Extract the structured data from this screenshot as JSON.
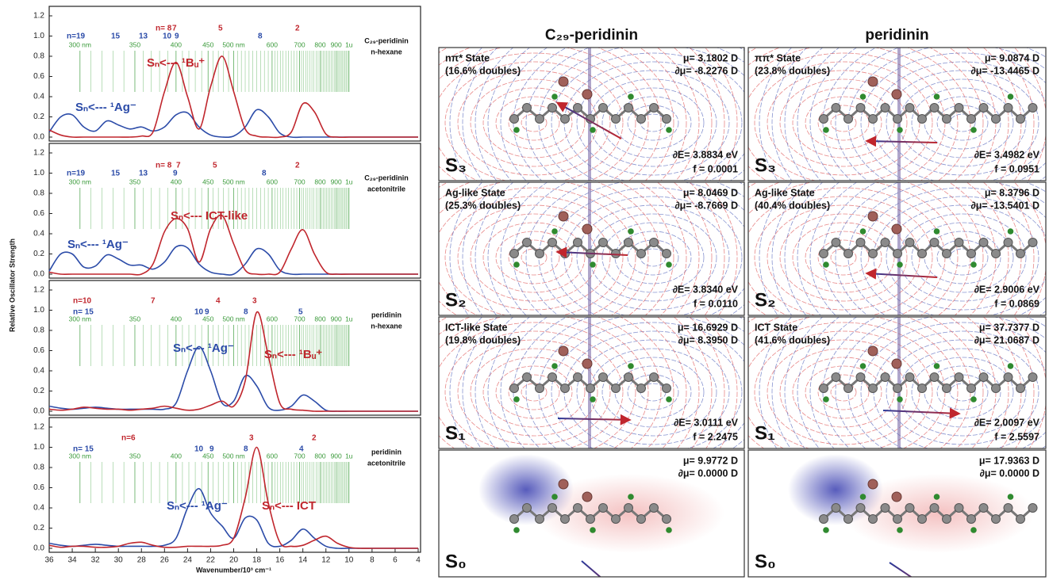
{
  "chart_data": [
    {
      "type": "line",
      "sample": "C₂₉-peridinin",
      "solvent": "n-hexane",
      "x": [
        36,
        35,
        34,
        33,
        32,
        31,
        30,
        29,
        28,
        27,
        26,
        25,
        24,
        23,
        22,
        21,
        20,
        19,
        18,
        17,
        16,
        15,
        14,
        13,
        12,
        11,
        10,
        9,
        8,
        7,
        6,
        5,
        4
      ],
      "xlim": [
        36,
        4
      ],
      "ylim": [
        0,
        1.2
      ],
      "yticks": [
        {
          "value": 0,
          "label": "0.0"
        },
        {
          "value": 0.2,
          "label": "0.2"
        },
        {
          "value": 0.4,
          "label": "0.4"
        },
        {
          "value": 0.6,
          "label": "0.6"
        },
        {
          "value": 0.8,
          "label": "0.8"
        },
        {
          "value": 1,
          "label": "1.0"
        },
        {
          "value": 1.2,
          "label": "1.2"
        }
      ],
      "x2ticks": [
        {
          "value": 33.33,
          "label": "300 nm"
        },
        {
          "value": 28.57,
          "label": "350"
        },
        {
          "value": 25,
          "label": "400"
        },
        {
          "value": 22.22,
          "label": "450"
        },
        {
          "value": 20,
          "label": "500 nm"
        },
        {
          "value": 16.67,
          "label": "600"
        },
        {
          "value": 14.29,
          "label": "700"
        },
        {
          "value": 12.5,
          "label": "800"
        },
        {
          "value": 11.11,
          "label": "900"
        },
        {
          "value": 10,
          "label": "1u"
        }
      ],
      "series": [
        {
          "color": "#2b4ba8",
          "values": [
            0.05,
            0.2,
            0.22,
            0.1,
            0.06,
            0.16,
            0.12,
            0.08,
            0.1,
            0.06,
            0.1,
            0.22,
            0.24,
            0.1,
            0.02,
            0,
            0.01,
            0.1,
            0.27,
            0.2,
            0.04,
            0,
            0,
            0,
            0,
            0,
            0,
            0,
            0,
            0,
            0,
            0,
            0
          ]
        },
        {
          "color": "#c0262d",
          "values": [
            0.07,
            0.02,
            0,
            0,
            0,
            0,
            0,
            0,
            0.01,
            0.05,
            0.45,
            0.74,
            0.4,
            0.08,
            0.5,
            0.8,
            0.45,
            0.08,
            0.01,
            0,
            0,
            0.05,
            0.33,
            0.25,
            0.03,
            0,
            0,
            0,
            0,
            0,
            0,
            0,
            0
          ]
        }
      ],
      "annotations": [
        {
          "text": "n=19",
          "color": "#2b4ba8"
        },
        {
          "text": "15",
          "color": "#2b4ba8"
        },
        {
          "text": "13",
          "color": "#2b4ba8"
        },
        {
          "text": "10",
          "color": "#2b4ba8"
        },
        {
          "text": "9",
          "color": "#2b4ba8"
        },
        {
          "text": "8",
          "color": "#2b4ba8"
        },
        {
          "text": "n= 8",
          "color": "#c0262d"
        },
        {
          "text": "7",
          "color": "#c0262d"
        },
        {
          "text": "5",
          "color": "#c0262d"
        },
        {
          "text": "2",
          "color": "#c0262d"
        },
        {
          "text": "Sₙ<--- ¹Ag⁻",
          "color": "#2b4ba8"
        },
        {
          "text": "Sₙ<--- ¹Bᵤ⁺",
          "color": "#c0262d"
        }
      ]
    },
    {
      "type": "line",
      "sample": "C₂₉-peridinin",
      "solvent": "acetonitrile",
      "x": [
        36,
        35,
        34,
        33,
        32,
        31,
        30,
        29,
        28,
        27,
        26,
        25,
        24,
        23,
        22,
        21,
        20,
        19,
        18,
        17,
        16,
        15,
        14,
        13,
        12,
        11,
        10,
        9,
        8,
        7,
        6,
        5,
        4
      ],
      "xlim": [
        36,
        4
      ],
      "ylim": [
        0,
        1.2
      ],
      "yticks": [
        {
          "value": 0,
          "label": "0.0"
        },
        {
          "value": 0.2,
          "label": "0.2"
        },
        {
          "value": 0.4,
          "label": "0.4"
        },
        {
          "value": 0.6,
          "label": "0.6"
        },
        {
          "value": 0.8,
          "label": "0.8"
        },
        {
          "value": 1,
          "label": "1.0"
        },
        {
          "value": 1.2,
          "label": "1.2"
        }
      ],
      "x2ticks": [
        {
          "value": 33.33,
          "label": "300 nm"
        },
        {
          "value": 28.57,
          "label": "350"
        },
        {
          "value": 25,
          "label": "400"
        },
        {
          "value": 22.22,
          "label": "450"
        },
        {
          "value": 20,
          "label": "500 nm"
        },
        {
          "value": 16.67,
          "label": "600"
        },
        {
          "value": 14.29,
          "label": "700"
        },
        {
          "value": 12.5,
          "label": "800"
        },
        {
          "value": 11.11,
          "label": "900"
        },
        {
          "value": 10,
          "label": "1u"
        }
      ],
      "series": [
        {
          "color": "#2b4ba8",
          "values": [
            0.03,
            0.2,
            0.2,
            0.07,
            0.08,
            0.19,
            0.15,
            0.09,
            0.09,
            0.05,
            0.12,
            0.27,
            0.26,
            0.1,
            0.02,
            0,
            0,
            0.1,
            0.25,
            0.2,
            0.04,
            0,
            0,
            0,
            0,
            0,
            0,
            0,
            0,
            0,
            0,
            0,
            0
          ]
        },
        {
          "color": "#c0262d",
          "values": [
            0.02,
            0,
            0,
            0,
            0,
            0,
            0,
            0,
            0,
            0.1,
            0.42,
            0.55,
            0.45,
            0.12,
            0.45,
            0.58,
            0.3,
            0.04,
            0,
            0,
            0.02,
            0.25,
            0.44,
            0.2,
            0.02,
            0,
            0,
            0,
            0,
            0,
            0,
            0,
            0
          ]
        }
      ],
      "annotations": [
        {
          "text": "n=19",
          "color": "#2b4ba8"
        },
        {
          "text": "15",
          "color": "#2b4ba8"
        },
        {
          "text": "13",
          "color": "#2b4ba8"
        },
        {
          "text": "9",
          "color": "#2b4ba8"
        },
        {
          "text": "8",
          "color": "#2b4ba8"
        },
        {
          "text": "n= 8",
          "color": "#c0262d"
        },
        {
          "text": "7",
          "color": "#c0262d"
        },
        {
          "text": "5",
          "color": "#c0262d"
        },
        {
          "text": "2",
          "color": "#c0262d"
        },
        {
          "text": "Sₙ<--- ICT-like",
          "color": "#c0262d"
        },
        {
          "text": "Sₙ<--- ¹Ag⁻",
          "color": "#2b4ba8"
        }
      ]
    },
    {
      "type": "line",
      "sample": "peridinin",
      "solvent": "n-hexane",
      "x": [
        36,
        35,
        34,
        33,
        32,
        31,
        30,
        29,
        28,
        27,
        26,
        25,
        24,
        23,
        22,
        21,
        20,
        19,
        18,
        17,
        16,
        15,
        14,
        13,
        12,
        11,
        10,
        9,
        8,
        7,
        6,
        5,
        4
      ],
      "xlim": [
        36,
        4
      ],
      "ylim": [
        0,
        1.2
      ],
      "yticks": [
        {
          "value": 0,
          "label": "0.0"
        },
        {
          "value": 0.2,
          "label": "0.2"
        },
        {
          "value": 0.4,
          "label": "0.4"
        },
        {
          "value": 0.6,
          "label": "0.6"
        },
        {
          "value": 0.8,
          "label": "0.8"
        },
        {
          "value": 1,
          "label": "1.0"
        },
        {
          "value": 1.2,
          "label": "1.2"
        }
      ],
      "x2ticks": [
        {
          "value": 33.33,
          "label": "300 nm"
        },
        {
          "value": 28.57,
          "label": "350"
        },
        {
          "value": 25,
          "label": "400"
        },
        {
          "value": 22.22,
          "label": "450"
        },
        {
          "value": 20,
          "label": "500 nm"
        },
        {
          "value": 16.67,
          "label": "600"
        },
        {
          "value": 14.29,
          "label": "700"
        },
        {
          "value": 12.5,
          "label": "800"
        },
        {
          "value": 11.11,
          "label": "900"
        },
        {
          "value": 10,
          "label": "1u"
        }
      ],
      "series": [
        {
          "color": "#2b4ba8",
          "values": [
            0.05,
            0.03,
            0.02,
            0.03,
            0.04,
            0.03,
            0.02,
            0.02,
            0.02,
            0.02,
            0.02,
            0.08,
            0.4,
            0.64,
            0.4,
            0.08,
            0.1,
            0.35,
            0.25,
            0.04,
            0.01,
            0.05,
            0.16,
            0.1,
            0.01,
            0,
            0,
            0,
            0,
            0,
            0,
            0,
            0
          ]
        },
        {
          "color": "#c0262d",
          "values": [
            0.02,
            0.01,
            0.02,
            0.04,
            0.03,
            0.02,
            0.02,
            0.01,
            0.02,
            0.03,
            0.05,
            0.03,
            0.01,
            0.02,
            0.06,
            0.1,
            0.05,
            0.3,
            0.98,
            0.55,
            0.08,
            0.02,
            0.01,
            0,
            0,
            0,
            0,
            0,
            0,
            0,
            0,
            0,
            0
          ]
        }
      ],
      "annotations": [
        {
          "text": "n=10",
          "color": "#c0262d"
        },
        {
          "text": "n= 15",
          "color": "#2b4ba8"
        },
        {
          "text": "7",
          "color": "#c0262d"
        },
        {
          "text": "10",
          "color": "#2b4ba8"
        },
        {
          "text": "9",
          "color": "#2b4ba8"
        },
        {
          "text": "4",
          "color": "#c0262d"
        },
        {
          "text": "8",
          "color": "#2b4ba8"
        },
        {
          "text": "3",
          "color": "#c0262d"
        },
        {
          "text": "5",
          "color": "#2b4ba8"
        },
        {
          "text": "Sₙ<--- ¹Ag⁻",
          "color": "#2b4ba8"
        },
        {
          "text": "Sₙ<--- ¹Bᵤ⁺",
          "color": "#c0262d"
        }
      ]
    },
    {
      "type": "line",
      "sample": "peridinin",
      "solvent": "acetonitrile",
      "x": [
        36,
        35,
        34,
        33,
        32,
        31,
        30,
        29,
        28,
        27,
        26,
        25,
        24,
        23,
        22,
        21,
        20,
        19,
        18,
        17,
        16,
        15,
        14,
        13,
        12,
        11,
        10,
        9,
        8,
        7,
        6,
        5,
        4
      ],
      "xlim": [
        36,
        4
      ],
      "ylim": [
        0,
        1.2
      ],
      "xticks": [
        36,
        34,
        32,
        30,
        28,
        26,
        24,
        22,
        20,
        18,
        16,
        14,
        12,
        10,
        8,
        6,
        4
      ],
      "xlabel": "Wavenumber/10³ cm⁻¹",
      "yticks": [
        {
          "value": 0,
          "label": "0.0"
        },
        {
          "value": 0.2,
          "label": "0.2"
        },
        {
          "value": 0.4,
          "label": "0.4"
        },
        {
          "value": 0.6,
          "label": "0.6"
        },
        {
          "value": 0.8,
          "label": "0.8"
        },
        {
          "value": 1,
          "label": "1.0"
        },
        {
          "value": 1.2,
          "label": "1.2"
        }
      ],
      "x2ticks": [
        {
          "value": 33.33,
          "label": "300 nm"
        },
        {
          "value": 28.57,
          "label": "350"
        },
        {
          "value": 25,
          "label": "400"
        },
        {
          "value": 22.22,
          "label": "450"
        },
        {
          "value": 20,
          "label": "500 nm"
        },
        {
          "value": 16.67,
          "label": "600"
        },
        {
          "value": 14.29,
          "label": "700"
        },
        {
          "value": 12.5,
          "label": "800"
        },
        {
          "value": 11.11,
          "label": "900"
        },
        {
          "value": 10,
          "label": "1u"
        }
      ],
      "series": [
        {
          "color": "#2b4ba8",
          "values": [
            0.05,
            0.03,
            0.02,
            0.03,
            0.04,
            0.03,
            0.02,
            0.02,
            0.02,
            0.02,
            0.03,
            0.1,
            0.4,
            0.59,
            0.35,
            0.22,
            0.1,
            0.3,
            0.28,
            0.05,
            0.02,
            0.08,
            0.19,
            0.1,
            0.02,
            0,
            0,
            0,
            0,
            0,
            0,
            0,
            0
          ]
        },
        {
          "color": "#c0262d",
          "values": [
            0.03,
            0.01,
            0.02,
            0.02,
            0.01,
            0.01,
            0.02,
            0.05,
            0.06,
            0.03,
            0.01,
            0.01,
            0.02,
            0.02,
            0.02,
            0.03,
            0.1,
            0.5,
            1.0,
            0.45,
            0.06,
            0.02,
            0.03,
            0.08,
            0.12,
            0.05,
            0.01,
            0,
            0,
            0,
            0,
            0,
            0
          ]
        }
      ],
      "annotations": [
        {
          "text": "n= 15",
          "color": "#2b4ba8"
        },
        {
          "text": "n=6",
          "color": "#c0262d"
        },
        {
          "text": "10",
          "color": "#2b4ba8"
        },
        {
          "text": "9",
          "color": "#2b4ba8"
        },
        {
          "text": "8",
          "color": "#2b4ba8"
        },
        {
          "text": "3",
          "color": "#c0262d"
        },
        {
          "text": "4",
          "color": "#2b4ba8"
        },
        {
          "text": "2",
          "color": "#c0262d"
        },
        {
          "text": "Sₙ<--- ¹Ag⁻",
          "color": "#2b4ba8"
        },
        {
          "text": "Sₙ<--- ICT",
          "color": "#c0262d"
        }
      ]
    }
  ],
  "ylabel": "Relative Oscillator Strength",
  "panels": [
    {
      "title": "C₂₉-peridinin",
      "states": [
        {
          "label": "S₃",
          "name": "nπ* State",
          "doubles": "(16.6% doubles)",
          "mu": "μ= 3.1802 D",
          "dmu": "∂μ= -8.2276 D",
          "dE": "∂E= 3.8834 eV",
          "f": "f = 0.0001"
        },
        {
          "label": "S₂",
          "name": "Ag-like State",
          "doubles": "(25.3% doubles)",
          "mu": "μ= 8.0469 D",
          "dmu": "∂μ= -8.7669 D",
          "dE": "∂E= 3.8340 eV",
          "f": "f = 0.0110"
        },
        {
          "label": "S₁",
          "name": "ICT-like State",
          "doubles": "(19.8% doubles)",
          "mu": "μ= 16.6929 D",
          "dmu": "∂μ= 8.3950 D",
          "dE": "∂E= 3.0111 eV",
          "f": "f = 2.2475"
        },
        {
          "label": "S₀",
          "mu": "μ= 9.9772 D",
          "dmu": "∂μ= 0.0000 D"
        }
      ]
    },
    {
      "title": "peridinin",
      "states": [
        {
          "label": "S₃",
          "name": "ππ* State",
          "doubles": "(23.8% doubles)",
          "mu": "μ= 9.0874 D",
          "dmu": "∂μ= -13.4465 D",
          "dE": "∂E= 3.4982 eV",
          "f": "f = 0.0951"
        },
        {
          "label": "S₂",
          "name": "Ag-like State",
          "doubles": "(40.4% doubles)",
          "mu": "μ= 8.3796 D",
          "dmu": "∂μ= -13.5401 D",
          "dE": "∂E= 2.9006 eV",
          "f": "f = 0.0869"
        },
        {
          "label": "S₁",
          "name": "ICT State",
          "doubles": "(41.6% doubles)",
          "mu": "μ= 37.7377 D",
          "dmu": "∂μ= 21.0687 D",
          "dE": "∂E= 2.0097 eV",
          "f": "f = 2.5597"
        },
        {
          "label": "S₀",
          "mu": "μ= 17.9363 D",
          "dmu": "∂μ= 0.0000 D"
        }
      ]
    }
  ]
}
